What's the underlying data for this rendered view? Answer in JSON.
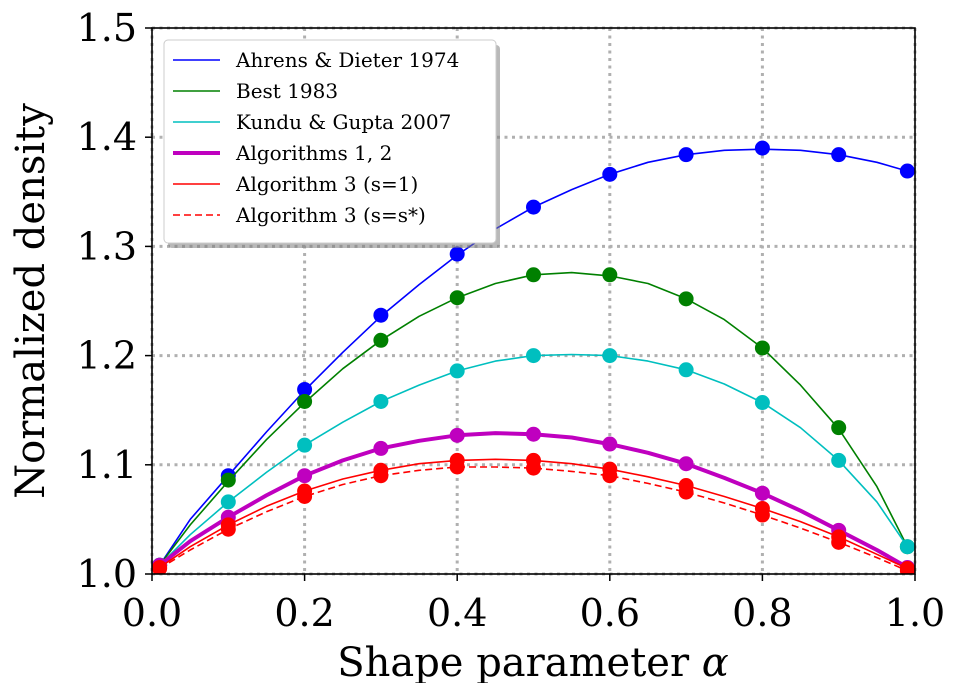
{
  "chart_data": {
    "type": "line",
    "xlabel_text": "Shape parameter ",
    "xlabel_symbol": "α",
    "ylabel": "Normalized density",
    "xlim": [
      0.0,
      1.0
    ],
    "ylim": [
      1.0,
      1.5
    ],
    "xticks": [
      "0.0",
      "0.2",
      "0.4",
      "0.6",
      "0.8",
      "1.0"
    ],
    "yticks": [
      "1.0",
      "1.1",
      "1.2",
      "1.3",
      "1.4",
      "1.5"
    ],
    "grid": true,
    "legend_position": "top-left",
    "series": [
      {
        "name": "Ahrens & Dieter 1974",
        "color": "#0000ff",
        "dash": "solid",
        "width": 1.6,
        "marker_color": "#0000ff",
        "curve_x": [
          0.01,
          0.05,
          0.1,
          0.15,
          0.2,
          0.25,
          0.3,
          0.35,
          0.4,
          0.45,
          0.5,
          0.55,
          0.6,
          0.65,
          0.7,
          0.75,
          0.8,
          0.85,
          0.9,
          0.95,
          0.99
        ],
        "curve_y": [
          1.008,
          1.05,
          1.09,
          1.13,
          1.168,
          1.203,
          1.236,
          1.265,
          1.292,
          1.316,
          1.336,
          1.352,
          1.366,
          1.377,
          1.384,
          1.388,
          1.389,
          1.388,
          1.384,
          1.377,
          1.369
        ],
        "points_x": [
          0.01,
          0.1,
          0.2,
          0.3,
          0.4,
          0.5,
          0.6,
          0.7,
          0.8,
          0.9,
          0.99
        ],
        "points_y": [
          1.008,
          1.09,
          1.169,
          1.237,
          1.293,
          1.336,
          1.366,
          1.384,
          1.39,
          1.384,
          1.369
        ]
      },
      {
        "name": "Best 1983",
        "color": "#008000",
        "dash": "solid",
        "width": 1.6,
        "marker_color": "#008000",
        "curve_x": [
          0.01,
          0.05,
          0.1,
          0.15,
          0.2,
          0.25,
          0.3,
          0.35,
          0.4,
          0.45,
          0.5,
          0.55,
          0.6,
          0.65,
          0.7,
          0.75,
          0.8,
          0.85,
          0.9,
          0.95,
          0.99
        ],
        "curve_y": [
          1.008,
          1.045,
          1.085,
          1.123,
          1.157,
          1.188,
          1.214,
          1.236,
          1.253,
          1.266,
          1.274,
          1.276,
          1.273,
          1.266,
          1.252,
          1.233,
          1.207,
          1.173,
          1.133,
          1.08,
          1.025
        ],
        "points_x": [
          0.01,
          0.1,
          0.2,
          0.3,
          0.4,
          0.5,
          0.6,
          0.7,
          0.8,
          0.9,
          0.99
        ],
        "points_y": [
          1.008,
          1.086,
          1.158,
          1.214,
          1.253,
          1.274,
          1.274,
          1.252,
          1.207,
          1.134,
          1.025
        ]
      },
      {
        "name": "Kundu & Gupta 2007",
        "color": "#00bfbf",
        "dash": "solid",
        "width": 1.6,
        "marker_color": "#00bfbf",
        "curve_x": [
          0.01,
          0.05,
          0.1,
          0.15,
          0.2,
          0.25,
          0.3,
          0.35,
          0.4,
          0.45,
          0.5,
          0.55,
          0.6,
          0.65,
          0.7,
          0.75,
          0.8,
          0.85,
          0.9,
          0.95,
          0.99
        ],
        "curve_y": [
          1.008,
          1.036,
          1.066,
          1.093,
          1.118,
          1.139,
          1.158,
          1.173,
          1.186,
          1.195,
          1.2,
          1.201,
          1.2,
          1.195,
          1.187,
          1.174,
          1.157,
          1.134,
          1.104,
          1.066,
          1.025
        ],
        "points_x": [
          0.01,
          0.1,
          0.2,
          0.3,
          0.4,
          0.5,
          0.6,
          0.7,
          0.8,
          0.9,
          0.99
        ],
        "points_y": [
          1.008,
          1.066,
          1.118,
          1.158,
          1.186,
          1.2,
          1.2,
          1.187,
          1.157,
          1.104,
          1.025
        ]
      },
      {
        "name": "Algorithms 1, 2",
        "color": "#bf00bf",
        "dash": "solid",
        "width": 4,
        "marker_color": "#bf00bf",
        "curve_x": [
          0.01,
          0.05,
          0.1,
          0.15,
          0.2,
          0.25,
          0.3,
          0.35,
          0.4,
          0.45,
          0.5,
          0.55,
          0.6,
          0.65,
          0.7,
          0.75,
          0.8,
          0.85,
          0.9,
          0.95,
          0.99
        ],
        "curve_y": [
          1.008,
          1.03,
          1.052,
          1.072,
          1.09,
          1.104,
          1.115,
          1.122,
          1.127,
          1.129,
          1.128,
          1.125,
          1.119,
          1.111,
          1.101,
          1.088,
          1.074,
          1.058,
          1.04,
          1.022,
          1.006
        ],
        "points_x": [
          0.01,
          0.1,
          0.2,
          0.3,
          0.4,
          0.5,
          0.6,
          0.7,
          0.8,
          0.9,
          0.99
        ],
        "points_y": [
          1.008,
          1.052,
          1.09,
          1.115,
          1.127,
          1.128,
          1.119,
          1.101,
          1.074,
          1.04,
          1.006
        ]
      },
      {
        "name": "Algorithm 3 (s=1)",
        "color": "#ff0000",
        "dash": "solid",
        "width": 1.6,
        "marker_color": "#ff0000",
        "curve_x": [
          0.01,
          0.05,
          0.1,
          0.15,
          0.2,
          0.25,
          0.3,
          0.35,
          0.4,
          0.45,
          0.5,
          0.55,
          0.6,
          0.65,
          0.7,
          0.75,
          0.8,
          0.85,
          0.9,
          0.95,
          0.99
        ],
        "curve_y": [
          1.006,
          1.025,
          1.045,
          1.062,
          1.076,
          1.087,
          1.095,
          1.101,
          1.104,
          1.105,
          1.104,
          1.101,
          1.096,
          1.089,
          1.081,
          1.071,
          1.06,
          1.048,
          1.034,
          1.018,
          1.005
        ],
        "points_x": [
          0.01,
          0.1,
          0.2,
          0.3,
          0.4,
          0.5,
          0.6,
          0.7,
          0.8,
          0.9,
          0.99
        ],
        "points_y": [
          1.006,
          1.045,
          1.076,
          1.095,
          1.104,
          1.104,
          1.096,
          1.081,
          1.06,
          1.034,
          1.005
        ]
      },
      {
        "name": "Algorithm 3 (s=s*)",
        "color": "#ff0000",
        "dash": "dashed",
        "width": 1.6,
        "marker_color": "#ff0000",
        "curve_x": [
          0.01,
          0.05,
          0.1,
          0.15,
          0.2,
          0.25,
          0.3,
          0.35,
          0.4,
          0.45,
          0.5,
          0.55,
          0.6,
          0.65,
          0.7,
          0.75,
          0.8,
          0.85,
          0.9,
          0.95,
          0.99
        ],
        "curve_y": [
          1.005,
          1.022,
          1.041,
          1.057,
          1.071,
          1.082,
          1.09,
          1.095,
          1.098,
          1.098,
          1.097,
          1.094,
          1.09,
          1.083,
          1.075,
          1.065,
          1.054,
          1.042,
          1.029,
          1.015,
          1.003
        ],
        "points_x": [
          0.01,
          0.1,
          0.2,
          0.3,
          0.4,
          0.5,
          0.6,
          0.7,
          0.8,
          0.9,
          0.99
        ],
        "points_y": [
          1.005,
          1.041,
          1.071,
          1.09,
          1.098,
          1.097,
          1.09,
          1.075,
          1.054,
          1.029,
          1.003
        ]
      }
    ]
  }
}
